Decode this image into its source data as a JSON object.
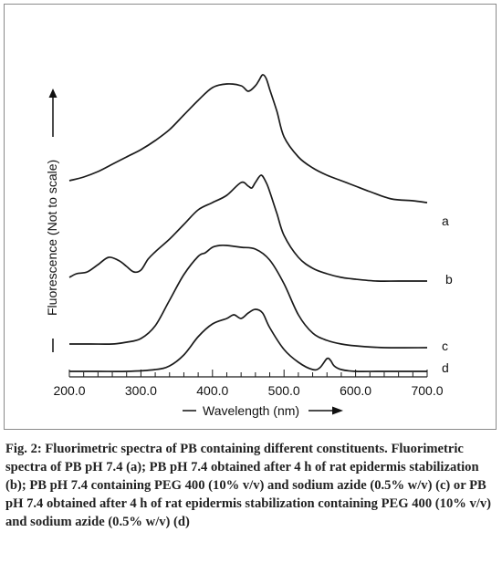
{
  "chart_data": {
    "type": "line",
    "title": "",
    "xlabel": "Wavelength (nm)",
    "ylabel": "Fluorescence (Not to scale)",
    "xlim": [
      200.0,
      700.0
    ],
    "x_ticks": [
      "200.0",
      "300.0",
      "400.0",
      "500.0",
      "600.0",
      "700.0"
    ],
    "grid": false,
    "legend": "curve letters at right end of each trace",
    "line_color": "#1a1a1a",
    "series": [
      {
        "name": "a",
        "x": [
          200,
          220,
          240,
          260,
          280,
          300,
          320,
          340,
          360,
          380,
          400,
          420,
          440,
          450,
          460,
          465,
          470,
          475,
          480,
          490,
          500,
          520,
          540,
          560,
          580,
          600,
          620,
          650,
          680,
          700
        ],
        "y": [
          22,
          24,
          27,
          31,
          35,
          39,
          44,
          50,
          58,
          66,
          73,
          75,
          74,
          71,
          74,
          77,
          80,
          78,
          72,
          60,
          46,
          35,
          29,
          25,
          22,
          19,
          16,
          12,
          11,
          10
        ]
      },
      {
        "name": "b",
        "x": [
          200,
          210,
          225,
          240,
          255,
          270,
          280,
          290,
          300,
          310,
          320,
          340,
          360,
          380,
          400,
          420,
          440,
          450,
          455,
          460,
          468,
          475,
          480,
          490,
          500,
          520,
          540,
          560,
          580,
          600,
          630,
          660,
          700
        ],
        "y": [
          1,
          3,
          4,
          8,
          12,
          10,
          7,
          4,
          5,
          11,
          15,
          22,
          30,
          38,
          42,
          46,
          53,
          51,
          50,
          53,
          57,
          53,
          48,
          36,
          24,
          12,
          6,
          3,
          1,
          0,
          -1,
          -1,
          -1
        ]
      },
      {
        "name": "c",
        "x": [
          200,
          230,
          260,
          280,
          300,
          320,
          340,
          360,
          380,
          390,
          400,
          410,
          420,
          440,
          460,
          480,
          500,
          520,
          540,
          560,
          580,
          600,
          640,
          700
        ],
        "y": [
          2,
          2,
          2,
          3,
          5,
          12,
          26,
          40,
          50,
          52,
          55,
          56,
          56,
          55,
          54,
          48,
          35,
          18,
          8,
          4,
          2,
          1,
          0,
          0
        ]
      },
      {
        "name": "d",
        "x": [
          200,
          240,
          280,
          320,
          340,
          360,
          380,
          400,
          420,
          430,
          440,
          450,
          460,
          470,
          480,
          500,
          520,
          540,
          550,
          560,
          565,
          570,
          580,
          600,
          630,
          660,
          700
        ],
        "y": [
          1,
          1,
          1,
          2,
          4,
          10,
          20,
          27,
          30,
          32,
          30,
          33,
          35,
          33,
          25,
          13,
          6,
          2,
          3,
          8,
          7,
          4,
          2,
          1,
          1,
          1,
          1
        ]
      }
    ]
  },
  "caption": "Fig. 2: Fluorimetric spectra of PB containing different constituents. Fluorimetric spectra of PB pH 7.4 (a); PB pH 7.4 obtained after 4 h of rat epidermis stabilization (b); PB pH 7.4 containing PEG 400 (10% v/v) and sodium azide (0.5% w/v) (c) or PB pH 7.4 obtained after 4 h of rat epidermis stabilization containing PEG 400 (10% v/v) and sodium azide (0.5% w/v) (d)"
}
